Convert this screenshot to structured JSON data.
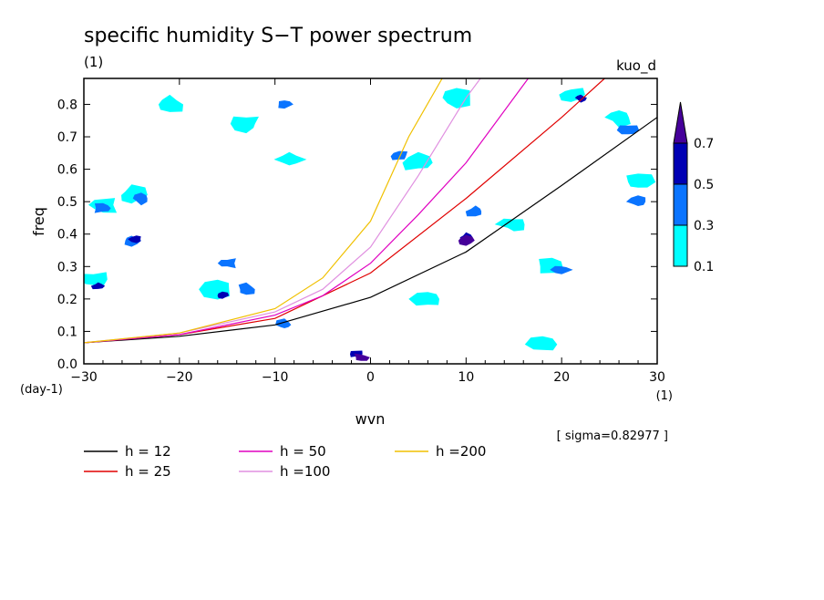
{
  "chart_data": {
    "type": "contour",
    "title": "specific humidity S−T power spectrum",
    "subtitle_left": "(1)",
    "subtitle_right": "kuo_d",
    "xlabel": "wvn",
    "ylabel": "freq",
    "x_unit": "(1)",
    "y_unit": "(day-1)",
    "xlim": [
      -30,
      30
    ],
    "ylim": [
      0,
      0.88
    ],
    "x_ticks": [
      -30,
      -20,
      -10,
      0,
      10,
      20,
      30
    ],
    "y_ticks": [
      0.0,
      0.1,
      0.2,
      0.3,
      0.4,
      0.5,
      0.6,
      0.7,
      0.8
    ],
    "x_tick_labels": [
      "−30",
      "−20",
      "−10",
      "0",
      "10",
      "20",
      "30"
    ],
    "y_tick_labels": [
      "0.0",
      "0.1",
      "0.2",
      "0.3",
      "0.4",
      "0.5",
      "0.6",
      "0.7",
      "0.8"
    ],
    "sigma_label": "[ sigma=0.82977 ]",
    "colorbar": {
      "levels": [
        0.1,
        0.3,
        0.5,
        0.7
      ],
      "level_labels": [
        "0.1",
        "0.3",
        "0.5",
        "0.7"
      ],
      "colors": [
        "#00ffff",
        "#0a74ff",
        "#0000b4",
        "#46009a"
      ]
    },
    "series": [
      {
        "name": "h = 12",
        "color": "#000000",
        "x": [
          -30,
          -20,
          -10,
          0,
          10,
          20,
          30
        ],
        "y": [
          0.065,
          0.085,
          0.12,
          0.205,
          0.345,
          0.55,
          0.76
        ]
      },
      {
        "name": "h = 25",
        "color": "#e00000",
        "x": [
          -30,
          -20,
          -10,
          0,
          10,
          20,
          24.5
        ],
        "y": [
          0.065,
          0.09,
          0.14,
          0.28,
          0.51,
          0.76,
          0.88
        ]
      },
      {
        "name": "h = 50",
        "color": "#e000c0",
        "x": [
          -30,
          -20,
          -10,
          -5,
          0,
          5,
          10,
          16.5
        ],
        "y": [
          0.065,
          0.09,
          0.15,
          0.21,
          0.31,
          0.46,
          0.62,
          0.88
        ]
      },
      {
        "name": "h =100",
        "color": "#e090e0",
        "x": [
          -30,
          -20,
          -10,
          -5,
          0,
          5,
          10,
          11.5
        ],
        "y": [
          0.065,
          0.095,
          0.16,
          0.23,
          0.36,
          0.58,
          0.82,
          0.88
        ]
      },
      {
        "name": "h =200",
        "color": "#f0c000",
        "x": [
          -30,
          -20,
          -10,
          -5,
          0,
          4,
          7.5
        ],
        "y": [
          0.065,
          0.095,
          0.17,
          0.265,
          0.44,
          0.7,
          0.88
        ]
      }
    ],
    "contour_blobs": [
      {
        "x": -29,
        "y": 0.26,
        "level": 0.1
      },
      {
        "x": -28.5,
        "y": 0.24,
        "level": 0.5
      },
      {
        "x": -25,
        "y": 0.52,
        "level": 0.1
      },
      {
        "x": -24,
        "y": 0.51,
        "level": 0.3
      },
      {
        "x": -28,
        "y": 0.49,
        "level": 0.1
      },
      {
        "x": -28,
        "y": 0.48,
        "level": 0.3
      },
      {
        "x": -25,
        "y": 0.38,
        "level": 0.3
      },
      {
        "x": -24.5,
        "y": 0.385,
        "level": 0.5
      },
      {
        "x": -21,
        "y": 0.8,
        "level": 0.1
      },
      {
        "x": -16,
        "y": 0.23,
        "level": 0.1
      },
      {
        "x": -15.5,
        "y": 0.21,
        "level": 0.5
      },
      {
        "x": -15,
        "y": 0.31,
        "level": 0.3
      },
      {
        "x": -13,
        "y": 0.23,
        "level": 0.3
      },
      {
        "x": -13,
        "y": 0.74,
        "level": 0.1
      },
      {
        "x": -9,
        "y": 0.12,
        "level": 0.3
      },
      {
        "x": -9,
        "y": 0.8,
        "level": 0.3
      },
      {
        "x": -8.5,
        "y": 0.63,
        "level": 0.1
      },
      {
        "x": -1.5,
        "y": 0.03,
        "level": 0.5
      },
      {
        "x": -1,
        "y": 0.02,
        "level": 0.7
      },
      {
        "x": 3,
        "y": 0.64,
        "level": 0.3
      },
      {
        "x": 5,
        "y": 0.62,
        "level": 0.1
      },
      {
        "x": 9,
        "y": 0.82,
        "level": 0.1
      },
      {
        "x": 10,
        "y": 0.39,
        "level": 0.5
      },
      {
        "x": 10,
        "y": 0.38,
        "level": 0.7
      },
      {
        "x": 11,
        "y": 0.47,
        "level": 0.3
      },
      {
        "x": 15,
        "y": 0.43,
        "level": 0.1
      },
      {
        "x": 19,
        "y": 0.3,
        "level": 0.1
      },
      {
        "x": 20,
        "y": 0.29,
        "level": 0.3
      },
      {
        "x": 21,
        "y": 0.83,
        "level": 0.1
      },
      {
        "x": 22,
        "y": 0.82,
        "level": 0.5
      },
      {
        "x": 26,
        "y": 0.76,
        "level": 0.1
      },
      {
        "x": 27,
        "y": 0.72,
        "level": 0.3
      },
      {
        "x": 28,
        "y": 0.56,
        "level": 0.1
      },
      {
        "x": 28,
        "y": 0.5,
        "level": 0.3
      },
      {
        "x": 6,
        "y": 0.2,
        "level": 0.1
      },
      {
        "x": 18,
        "y": 0.06,
        "level": 0.1
      }
    ],
    "legend_placement": "below-plot",
    "grid": false
  }
}
